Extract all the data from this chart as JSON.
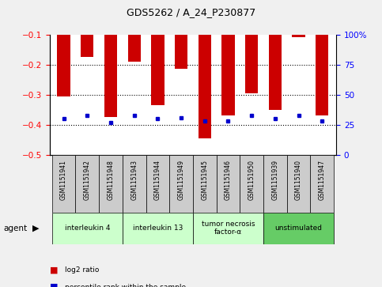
{
  "title": "GDS5262 / A_24_P230877",
  "samples": [
    "GSM1151941",
    "GSM1151942",
    "GSM1151948",
    "GSM1151943",
    "GSM1151944",
    "GSM1151949",
    "GSM1151945",
    "GSM1151946",
    "GSM1151950",
    "GSM1151939",
    "GSM1151940",
    "GSM1151947"
  ],
  "log2_ratio": [
    -0.305,
    -0.175,
    -0.375,
    -0.19,
    -0.335,
    -0.215,
    -0.445,
    -0.37,
    -0.295,
    -0.35,
    -0.11,
    -0.37
  ],
  "percentile": [
    30,
    33,
    27,
    33,
    30,
    31,
    28,
    28,
    33,
    30,
    33,
    28
  ],
  "ylim_left": [
    -0.5,
    -0.1
  ],
  "ylim_right": [
    0,
    100
  ],
  "yticks_left": [
    -0.5,
    -0.4,
    -0.3,
    -0.2,
    -0.1
  ],
  "yticks_right": [
    0,
    25,
    50,
    75,
    100
  ],
  "ytick_labels_right": [
    "0",
    "25",
    "50",
    "75",
    "100%"
  ],
  "agents": [
    {
      "label": "interleukin 4",
      "indices": [
        0,
        1,
        2
      ],
      "color": "#ccffcc"
    },
    {
      "label": "interleukin 13",
      "indices": [
        3,
        4,
        5
      ],
      "color": "#ccffcc"
    },
    {
      "label": "tumor necrosis\nfactor-α",
      "indices": [
        6,
        7,
        8
      ],
      "color": "#ccffcc"
    },
    {
      "label": "unstimulated",
      "indices": [
        9,
        10,
        11
      ],
      "color": "#66cc66"
    }
  ],
  "bar_color": "#cc0000",
  "dot_color": "#0000cc",
  "bg_plot": "#ffffff",
  "bg_sample": "#cccccc",
  "bg_figure": "#f0f0f0",
  "legend_items": [
    {
      "label": "log2 ratio",
      "color": "#cc0000"
    },
    {
      "label": "percentile rank within the sample",
      "color": "#0000cc"
    }
  ]
}
